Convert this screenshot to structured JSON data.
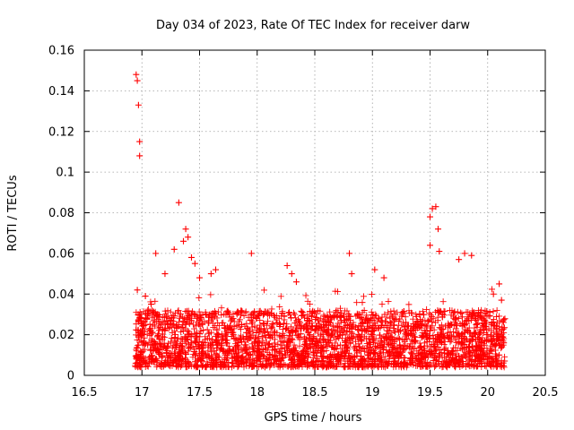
{
  "chart_data": {
    "type": "scatter",
    "title": "Day 034 of 2023, Rate Of TEC Index for receiver darw",
    "xlabel": "GPS time / hours",
    "ylabel": "ROTI / TECUs",
    "xlim": [
      16.5,
      20.5
    ],
    "ylim": [
      0,
      0.16
    ],
    "x_ticks": [
      "16.5",
      "17",
      "17.5",
      "18",
      "18.5",
      "19",
      "19.5",
      "20",
      "20.5"
    ],
    "y_ticks": [
      "0",
      "0.02",
      "0.04",
      "0.06",
      "0.08",
      "0.1",
      "0.12",
      "0.14",
      "0.16"
    ],
    "grid": true,
    "marker": "+",
    "color": "#ff0000",
    "series": [
      {
        "name": "ROTI",
        "points": [
          [
            16.95,
            0.148
          ],
          [
            16.96,
            0.145
          ],
          [
            16.97,
            0.133
          ],
          [
            16.98,
            0.115
          ],
          [
            16.98,
            0.108
          ],
          [
            16.96,
            0.042
          ],
          [
            17.03,
            0.039
          ],
          [
            17.08,
            0.035
          ],
          [
            17.12,
            0.06
          ],
          [
            17.2,
            0.05
          ],
          [
            17.28,
            0.062
          ],
          [
            17.32,
            0.085
          ],
          [
            17.36,
            0.066
          ],
          [
            17.38,
            0.072
          ],
          [
            17.4,
            0.068
          ],
          [
            17.43,
            0.058
          ],
          [
            17.46,
            0.055
          ],
          [
            17.5,
            0.048
          ],
          [
            17.6,
            0.05
          ],
          [
            17.64,
            0.052
          ],
          [
            17.95,
            0.06
          ],
          [
            18.26,
            0.054
          ],
          [
            18.3,
            0.05
          ],
          [
            18.34,
            0.046
          ],
          [
            18.8,
            0.06
          ],
          [
            18.82,
            0.05
          ],
          [
            19.02,
            0.052
          ],
          [
            19.1,
            0.048
          ],
          [
            19.5,
            0.078
          ],
          [
            19.52,
            0.082
          ],
          [
            19.55,
            0.083
          ],
          [
            19.57,
            0.072
          ],
          [
            19.5,
            0.064
          ],
          [
            19.58,
            0.061
          ],
          [
            19.75,
            0.057
          ],
          [
            19.8,
            0.06
          ],
          [
            19.86,
            0.059
          ],
          [
            20.05,
            0.04
          ],
          [
            20.1,
            0.045
          ],
          [
            20.12,
            0.037
          ],
          [
            17.0,
            0.02
          ],
          [
            17.05,
            0.015
          ],
          [
            17.1,
            0.012
          ],
          [
            17.15,
            0.018
          ],
          [
            17.2,
            0.022
          ],
          [
            17.3,
            0.014
          ],
          [
            17.4,
            0.02
          ],
          [
            17.5,
            0.01
          ],
          [
            17.6,
            0.008
          ],
          [
            17.7,
            0.012
          ],
          [
            17.8,
            0.018
          ],
          [
            17.9,
            0.015
          ],
          [
            18.0,
            0.01
          ],
          [
            18.1,
            0.02
          ],
          [
            18.2,
            0.025
          ],
          [
            18.3,
            0.018
          ],
          [
            18.4,
            0.012
          ],
          [
            18.5,
            0.022
          ],
          [
            18.6,
            0.015
          ],
          [
            18.7,
            0.008
          ],
          [
            18.8,
            0.018
          ],
          [
            18.9,
            0.012
          ],
          [
            19.0,
            0.02
          ],
          [
            19.1,
            0.014
          ],
          [
            19.2,
            0.006
          ],
          [
            19.3,
            0.018
          ],
          [
            19.4,
            0.01
          ],
          [
            19.5,
            0.022
          ],
          [
            19.6,
            0.016
          ],
          [
            19.7,
            0.012
          ],
          [
            19.8,
            0.018
          ],
          [
            19.9,
            0.014
          ],
          [
            20.0,
            0.02
          ],
          [
            20.1,
            0.01
          ],
          [
            20.14,
            0.016
          ]
        ],
        "band": {
          "x_range": [
            16.94,
            20.15
          ],
          "typical_range": [
            0.004,
            0.032
          ],
          "approx_point_count": 3000
        }
      }
    ]
  }
}
